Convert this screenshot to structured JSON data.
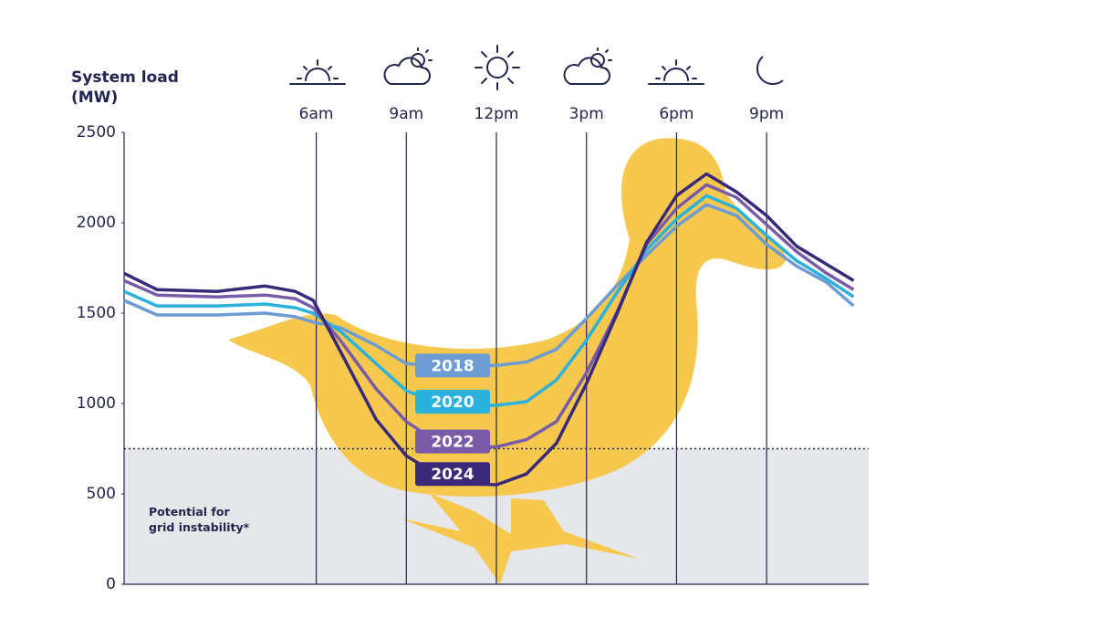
{
  "chart_data": {
    "type": "line",
    "y_label": "System load (MW)",
    "annotation": "Potential for grid instability*",
    "threshold": 750,
    "x": [
      -0.4,
      0.7,
      2.7,
      4.3,
      5.3,
      5.9,
      6.8,
      8,
      9,
      10,
      11,
      12,
      13,
      14,
      15,
      16,
      17,
      18,
      19,
      20,
      21,
      22,
      23,
      23.9
    ],
    "xlim": [
      -0.4,
      24.4
    ],
    "xticks": [
      {
        "value": 6,
        "label": "6am"
      },
      {
        "value": 9,
        "label": "9am"
      },
      {
        "value": 12,
        "label": "12pm"
      },
      {
        "value": 15,
        "label": "3pm"
      },
      {
        "value": 18,
        "label": "6pm"
      },
      {
        "value": 21,
        "label": "9pm"
      }
    ],
    "ylim": [
      0,
      2500
    ],
    "yticks": [
      0,
      500,
      1000,
      1500,
      2000,
      2500
    ],
    "series": [
      {
        "name": "2018",
        "color": "#6f9bd3",
        "values": [
          1570,
          1490,
          1490,
          1500,
          1480,
          1450,
          1420,
          1320,
          1220,
          1210,
          1210,
          1210,
          1230,
          1300,
          1470,
          1650,
          1820,
          1980,
          2100,
          2040,
          1880,
          1760,
          1670,
          1540
        ]
      },
      {
        "name": "2020",
        "color": "#2ab1dc",
        "values": [
          1620,
          1540,
          1540,
          1550,
          1530,
          1500,
          1400,
          1220,
          1070,
          1010,
          990,
          990,
          1010,
          1130,
          1350,
          1610,
          1850,
          2020,
          2150,
          2080,
          1930,
          1790,
          1690,
          1590
        ]
      },
      {
        "name": "2022",
        "color": "#7a5ba8",
        "values": [
          1680,
          1600,
          1590,
          1600,
          1580,
          1530,
          1350,
          1080,
          900,
          790,
          760,
          760,
          800,
          900,
          1170,
          1500,
          1880,
          2080,
          2210,
          2140,
          1990,
          1840,
          1720,
          1630
        ]
      },
      {
        "name": "2024",
        "color": "#3a2979",
        "values": [
          1720,
          1630,
          1620,
          1650,
          1620,
          1570,
          1290,
          910,
          710,
          610,
          560,
          550,
          610,
          780,
          1110,
          1490,
          1890,
          2150,
          2270,
          2170,
          2040,
          1870,
          1770,
          1680
        ]
      }
    ]
  }
}
